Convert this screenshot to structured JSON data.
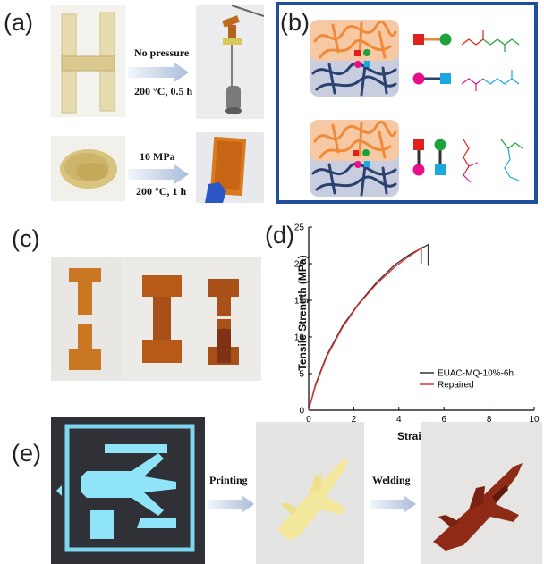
{
  "figure": {
    "panel_labels": {
      "a": "(a)",
      "b": "(b)",
      "c": "(c)",
      "d": "(d)",
      "e": "(e)"
    },
    "panel_a": {
      "top_arrow_top": "No pressure",
      "top_arrow_bottom": "200 °C, 0.5 h",
      "bottom_arrow_top": "10 MPa",
      "bottom_arrow_bottom": "200 °C, 1 h"
    },
    "panel_b": {
      "frame_color": "#1f4e9a",
      "orange_network_color": "#f39a4a",
      "blue_network_color": "#2f4a7a",
      "symbol_colors": {
        "red": "#e0201a",
        "green": "#1aa33a",
        "magenta": "#e8108a",
        "cyan": "#19a8e0"
      }
    },
    "panel_e": {
      "arrow1": "Printing",
      "arrow2": "Welding"
    }
  },
  "chart_data": {
    "type": "line",
    "xlabel": "Strain (%)",
    "ylabel": "Tensile Strength (MPa)",
    "xlim": [
      0,
      10
    ],
    "ylim": [
      0,
      25
    ],
    "xticks": [
      "0",
      "2",
      "4",
      "6",
      "8",
      "10"
    ],
    "yticks": [
      "0",
      "5",
      "10",
      "15",
      "20",
      "25"
    ],
    "legend_position": "bottom-right",
    "series": [
      {
        "name": "EUAC-MQ-10%-6h",
        "color": "#333333",
        "x": [
          0,
          0.3,
          0.8,
          1.5,
          2.2,
          3.0,
          3.8,
          4.5,
          5.0,
          5.3,
          5.3
        ],
        "y": [
          0,
          3.5,
          7.5,
          11.5,
          14.5,
          17.4,
          19.8,
          21.3,
          22.1,
          22.6,
          19.7
        ]
      },
      {
        "name": "Repaired",
        "color": "#e03030",
        "x": [
          0,
          0.3,
          0.8,
          1.5,
          2.2,
          3.0,
          3.8,
          4.4,
          4.9,
          5.0,
          5.0
        ],
        "y": [
          0,
          3.3,
          7.3,
          11.3,
          14.4,
          17.2,
          19.5,
          20.9,
          21.9,
          22.2,
          20.0
        ]
      }
    ]
  }
}
